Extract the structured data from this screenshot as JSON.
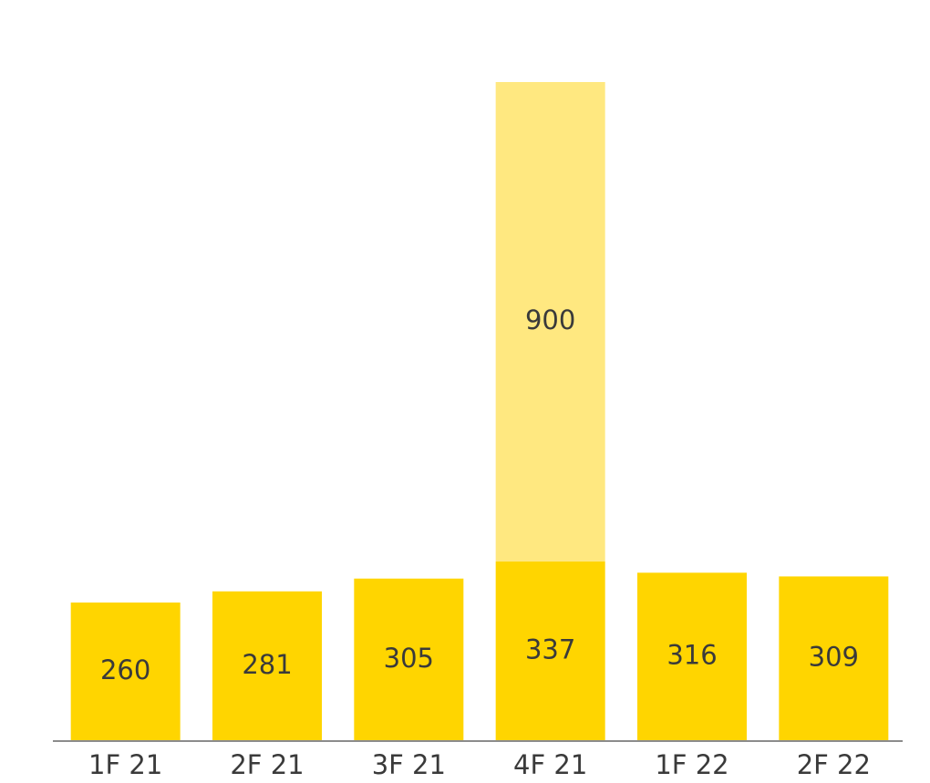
{
  "chart_data": {
    "type": "stacked-bar",
    "categories": [
      "1F 21",
      "2F 21",
      "3F 21",
      "4F 21",
      "1F 22",
      "2F 22"
    ],
    "series": [
      {
        "color": "#FFD500",
        "values": [
          260,
          281,
          305,
          337,
          316,
          309
        ]
      },
      {
        "color": "#FFE880",
        "values": [
          null,
          null,
          null,
          900,
          null,
          null
        ]
      }
    ],
    "axis_color": "#8c8c8c"
  }
}
